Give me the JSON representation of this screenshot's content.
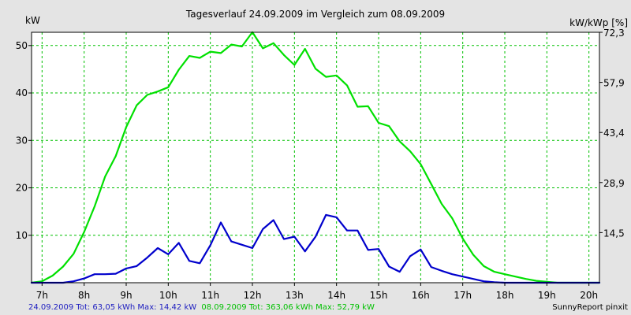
{
  "chart_data": {
    "type": "line",
    "title": "Tagesverlauf 24.09.2009 im Vergleich zum 08.09.2009",
    "ylabel_left": "kW",
    "ylabel_right": "kW/kWp [%]",
    "x_range": [
      6.75,
      20.25
    ],
    "x_ticks": [
      {
        "v": 7,
        "label": "7h"
      },
      {
        "v": 8,
        "label": "8h"
      },
      {
        "v": 9,
        "label": "9h"
      },
      {
        "v": 10,
        "label": "10h"
      },
      {
        "v": 11,
        "label": "11h"
      },
      {
        "v": 12,
        "label": "12h"
      },
      {
        "v": 13,
        "label": "13h"
      },
      {
        "v": 14,
        "label": "14h"
      },
      {
        "v": 15,
        "label": "15h"
      },
      {
        "v": 16,
        "label": "16h"
      },
      {
        "v": 17,
        "label": "17h"
      },
      {
        "v": 18,
        "label": "18h"
      },
      {
        "v": 19,
        "label": "19h"
      },
      {
        "v": 20,
        "label": "20h"
      }
    ],
    "ylim": [
      0,
      52.79
    ],
    "y_ticks_left": [
      {
        "v": 10,
        "label": "10"
      },
      {
        "v": 20,
        "label": "20"
      },
      {
        "v": 30,
        "label": "30"
      },
      {
        "v": 40,
        "label": "40"
      },
      {
        "v": 50,
        "label": "50"
      }
    ],
    "y_ticks_right": [
      {
        "v": 10.56,
        "label": "14,5"
      },
      {
        "v": 21.12,
        "label": "28,9"
      },
      {
        "v": 31.67,
        "label": "43,4"
      },
      {
        "v": 42.23,
        "label": "57,9"
      },
      {
        "v": 52.79,
        "label": "72,3"
      }
    ],
    "grid": true,
    "series": [
      {
        "name": "08.09.2009",
        "color": "#00e000",
        "x": [
          6.75,
          7.0,
          7.25,
          7.5,
          7.75,
          8.0,
          8.25,
          8.5,
          8.75,
          9.0,
          9.25,
          9.5,
          9.75,
          10.0,
          10.25,
          10.5,
          10.75,
          11.0,
          11.25,
          11.5,
          11.75,
          12.0,
          12.25,
          12.5,
          12.75,
          13.0,
          13.25,
          13.5,
          13.75,
          14.0,
          14.25,
          14.5,
          14.75,
          15.0,
          15.25,
          15.5,
          15.75,
          16.0,
          16.25,
          16.5,
          16.75,
          17.0,
          17.25,
          17.5,
          17.75,
          18.0,
          18.25,
          18.5,
          18.75,
          19.0,
          19.25,
          19.5,
          19.75,
          20.0,
          20.25
        ],
        "values": [
          0.0,
          0.3,
          1.5,
          3.4,
          6.1,
          10.7,
          16.1,
          22.4,
          26.7,
          32.8,
          37.4,
          39.6,
          40.3,
          41.2,
          44.9,
          47.8,
          47.4,
          48.7,
          48.4,
          50.2,
          49.8,
          52.8,
          49.4,
          50.5,
          48.0,
          45.9,
          49.3,
          45.1,
          43.4,
          43.7,
          41.6,
          37.1,
          37.2,
          33.7,
          33.0,
          29.8,
          27.7,
          25.0,
          20.8,
          16.6,
          13.6,
          9.3,
          5.9,
          3.5,
          2.3,
          1.8,
          1.3,
          0.8,
          0.4,
          0.2,
          0.0,
          0.0,
          0.0,
          0.0,
          0.0
        ]
      },
      {
        "name": "24.09.2009",
        "color": "#0000cc",
        "x": [
          6.75,
          7.0,
          7.25,
          7.5,
          7.75,
          8.0,
          8.25,
          8.5,
          8.75,
          9.0,
          9.25,
          9.5,
          9.75,
          10.0,
          10.25,
          10.5,
          10.75,
          11.0,
          11.25,
          11.5,
          11.75,
          12.0,
          12.25,
          12.5,
          12.75,
          13.0,
          13.25,
          13.5,
          13.75,
          14.0,
          14.25,
          14.5,
          14.75,
          15.0,
          15.25,
          15.5,
          15.75,
          16.0,
          16.25,
          16.5,
          16.75,
          17.0,
          17.25,
          17.5,
          17.75,
          18.0,
          18.25,
          18.5,
          18.75,
          19.0,
          19.25,
          19.5,
          19.75,
          20.0,
          20.25
        ],
        "values": [
          0.0,
          0.0,
          0.0,
          0.0,
          0.3,
          0.9,
          1.8,
          1.8,
          1.9,
          3.0,
          3.5,
          5.3,
          7.3,
          6.0,
          8.4,
          4.6,
          4.1,
          7.9,
          12.7,
          8.7,
          8.0,
          7.3,
          11.3,
          13.2,
          9.2,
          9.7,
          6.6,
          9.7,
          14.3,
          13.8,
          11.0,
          11.0,
          6.9,
          7.1,
          3.4,
          2.3,
          5.6,
          7.0,
          3.3,
          2.5,
          1.8,
          1.3,
          0.8,
          0.3,
          0.1,
          0.0,
          0.0,
          0.0,
          0.0,
          0.0,
          0.0,
          0.0,
          0.0,
          0.0,
          0.0
        ]
      }
    ]
  },
  "legend": {
    "entries": [
      {
        "text": "24.09.2009 Tot: 63,05 kWh Max: 14,42 kW",
        "color": "#2020c0"
      },
      {
        "text": "08.09.2009 Tot: 363,06 kWh Max: 52,79 kW",
        "color": "#00c000"
      }
    ],
    "source": "SunnyReport pinxit"
  }
}
